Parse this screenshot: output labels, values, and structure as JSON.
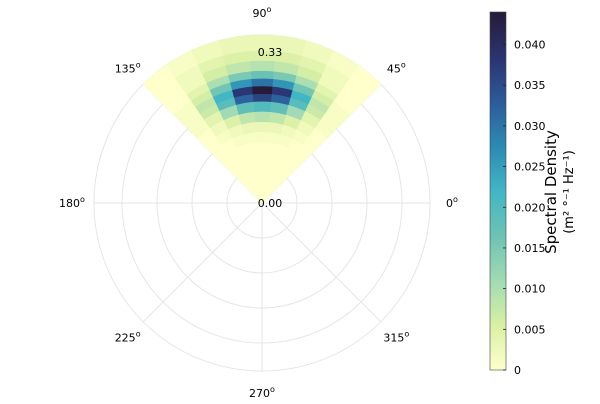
{
  "chart_data": {
    "type": "heatmap",
    "subtype": "polar-sector",
    "angle_ticks": [
      {
        "deg": 0,
        "label": "0o"
      },
      {
        "deg": 45,
        "label": "45o"
      },
      {
        "deg": 90,
        "label": "90o"
      },
      {
        "deg": 135,
        "label": "135o"
      },
      {
        "deg": 180,
        "label": "180o"
      },
      {
        "deg": 225,
        "label": "225o"
      },
      {
        "deg": 270,
        "label": "270o"
      },
      {
        "deg": 315,
        "label": "315o"
      }
    ],
    "radial_center_label": "0.00",
    "radial_max_label": "0.33",
    "sector": {
      "theta_min": 45,
      "theta_max": 135,
      "r_min": 0,
      "r_max": 0.33
    },
    "angle_bins": 9,
    "radius_bins": [
      {
        "r0": 0.0,
        "r1": 0.12,
        "values": [
          0.0,
          0.0,
          0.0,
          0.0,
          0.0,
          0.0,
          0.0,
          0.0,
          0.0
        ]
      },
      {
        "r0": 0.12,
        "r1": 0.14,
        "values": [
          0.0,
          0.0,
          0.001,
          0.001,
          0.001,
          0.001,
          0.001,
          0.0,
          0.0
        ]
      },
      {
        "r0": 0.14,
        "r1": 0.16,
        "values": [
          0.0,
          0.001,
          0.002,
          0.003,
          0.003,
          0.003,
          0.002,
          0.001,
          0.0
        ]
      },
      {
        "r0": 0.16,
        "r1": 0.18,
        "values": [
          0.0,
          0.002,
          0.005,
          0.008,
          0.009,
          0.008,
          0.005,
          0.002,
          0.0
        ]
      },
      {
        "r0": 0.18,
        "r1": 0.2,
        "values": [
          0.001,
          0.004,
          0.011,
          0.018,
          0.02,
          0.018,
          0.011,
          0.004,
          0.001
        ]
      },
      {
        "r0": 0.2,
        "r1": 0.215,
        "values": [
          0.001,
          0.007,
          0.019,
          0.032,
          0.036,
          0.032,
          0.019,
          0.007,
          0.001
        ]
      },
      {
        "r0": 0.215,
        "r1": 0.23,
        "values": [
          0.001,
          0.008,
          0.022,
          0.038,
          0.044,
          0.038,
          0.022,
          0.008,
          0.001
        ]
      },
      {
        "r0": 0.23,
        "r1": 0.245,
        "values": [
          0.001,
          0.006,
          0.016,
          0.026,
          0.03,
          0.026,
          0.016,
          0.006,
          0.001
        ]
      },
      {
        "r0": 0.245,
        "r1": 0.26,
        "values": [
          0.0,
          0.004,
          0.01,
          0.015,
          0.017,
          0.015,
          0.01,
          0.004,
          0.0
        ]
      },
      {
        "r0": 0.26,
        "r1": 0.28,
        "values": [
          0.0,
          0.002,
          0.006,
          0.008,
          0.009,
          0.008,
          0.006,
          0.002,
          0.0
        ]
      },
      {
        "r0": 0.28,
        "r1": 0.3,
        "values": [
          0.0,
          0.002,
          0.004,
          0.005,
          0.005,
          0.005,
          0.004,
          0.002,
          0.0
        ]
      },
      {
        "r0": 0.3,
        "r1": 0.33,
        "values": [
          0.0,
          0.001,
          0.002,
          0.003,
          0.003,
          0.003,
          0.002,
          0.001,
          0.0
        ]
      }
    ],
    "colorbar": {
      "label_line1": "Spectral Density",
      "label_line2": "(m² °⁻¹ Hz⁻¹)",
      "min": 0,
      "max": 0.044,
      "ticks": [
        {
          "value": 0,
          "label": "0"
        },
        {
          "value": 0.005,
          "label": "0.005"
        },
        {
          "value": 0.01,
          "label": "0.010"
        },
        {
          "value": 0.015,
          "label": "0.015"
        },
        {
          "value": 0.02,
          "label": "0.020"
        },
        {
          "value": 0.025,
          "label": "0.025"
        },
        {
          "value": 0.03,
          "label": "0.030"
        },
        {
          "value": 0.035,
          "label": "0.035"
        },
        {
          "value": 0.04,
          "label": "0.040"
        }
      ],
      "colormap": [
        "#ffffcc",
        "#d9f0a3",
        "#a1dab4",
        "#6cc3b4",
        "#41b6c4",
        "#2c8ab4",
        "#2c5a9a",
        "#2b3370",
        "#261b38"
      ]
    },
    "grid": true
  }
}
